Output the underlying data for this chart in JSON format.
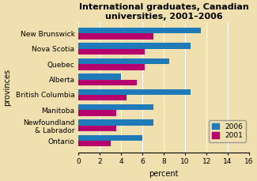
{
  "title": "International graduates, Canadian\nuniversities, 2001–2006",
  "provinces": [
    "Ontario",
    "Newfoundland\n& Labrador",
    "Manitoba",
    "British Columbia",
    "Alberta",
    "Quebec",
    "Nova Scotia",
    "New Brunswick"
  ],
  "values_2006": [
    6.0,
    7.0,
    7.0,
    10.5,
    4.0,
    8.5,
    10.5,
    11.5
  ],
  "values_2001": [
    3.0,
    3.5,
    3.5,
    4.5,
    5.5,
    6.2,
    6.2,
    7.0
  ],
  "color_2006": "#1e7ab8",
  "color_2001": "#b5006e",
  "xlabel": "percent",
  "ylabel": "provinces",
  "xlim": [
    0,
    16
  ],
  "xticks": [
    0,
    2,
    4,
    6,
    8,
    10,
    12,
    14,
    16
  ],
  "background_color": "#f0e0b0",
  "plot_background": "#f0e0b0",
  "title_fontsize": 8,
  "axis_label_fontsize": 7,
  "tick_fontsize": 6.5,
  "bar_height": 0.38
}
